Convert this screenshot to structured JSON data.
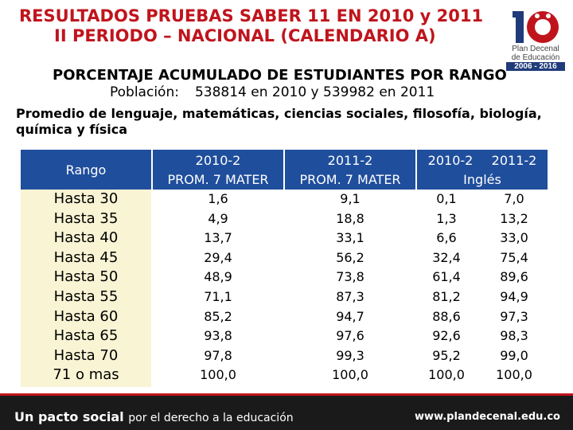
{
  "title": {
    "line1": "RESULTADOS PRUEBAS SABER 11 EN 2010 y 2011",
    "line2": "II PERIODO – NACIONAL (CALENDARIO A)"
  },
  "logo": {
    "digits": "10",
    "text1": "Plan Decenal",
    "text2": "de Educación",
    "years": "2006 - 2016"
  },
  "subtitle": {
    "heading": "PORCENTAJE ACUMULADO DE ESTUDIANTES POR RANGO",
    "population_label": "Población:",
    "population_value": "538814 en 2010 y  539982 en 2011"
  },
  "description": "Promedio de lenguaje, matemáticas, ciencias sociales, filosofía, biología, química y física",
  "table": {
    "header_rango": "Rango",
    "col1_year": "2010-2",
    "col1_sub": "PROM. 7 MATER",
    "col2_year": "2011-2",
    "col2_sub": "PROM. 7 MATER",
    "eng_year1": "2010-2",
    "eng_year2": "2011-2",
    "eng_sub": "Inglés",
    "rows": [
      {
        "rango": "Hasta 30",
        "p2010": "1,6",
        "p2011": "9,1",
        "e2010": "0,1",
        "e2011": "7,0"
      },
      {
        "rango": "Hasta 35",
        "p2010": "4,9",
        "p2011": "18,8",
        "e2010": "1,3",
        "e2011": "13,2"
      },
      {
        "rango": "Hasta 40",
        "p2010": "13,7",
        "p2011": "33,1",
        "e2010": "6,6",
        "e2011": "33,0"
      },
      {
        "rango": "Hasta 45",
        "p2010": "29,4",
        "p2011": "56,2",
        "e2010": "32,4",
        "e2011": "75,4"
      },
      {
        "rango": "Hasta 50",
        "p2010": "48,9",
        "p2011": "73,8",
        "e2010": "61,4",
        "e2011": "89,6"
      },
      {
        "rango": "Hasta 55",
        "p2010": "71,1",
        "p2011": "87,3",
        "e2010": "81,2",
        "e2011": "94,9"
      },
      {
        "rango": "Hasta 60",
        "p2010": "85,2",
        "p2011": "94,7",
        "e2010": "88,6",
        "e2011": "97,3"
      },
      {
        "rango": "Hasta 65",
        "p2010": "93,8",
        "p2011": "97,6",
        "e2010": "92,6",
        "e2011": "98,3"
      },
      {
        "rango": "Hasta 70",
        "p2010": "97,8",
        "p2011": "99,3",
        "e2010": "95,2",
        "e2011": "99,0"
      },
      {
        "rango": "71 o mas",
        "p2010": "100,0",
        "p2011": "100,0",
        "e2010": "100,0",
        "e2011": "100,0"
      }
    ]
  },
  "footer": {
    "slogan_bold": "Un pacto social",
    "slogan_rest": "por el derecho a la educación",
    "url": "www.plandecenal.edu.co"
  },
  "colors": {
    "title_red": "#c0141c",
    "header_blue": "#1f4e9c",
    "rango_bg": "#f8f4d4",
    "footer_bg": "#1a1a1a"
  }
}
